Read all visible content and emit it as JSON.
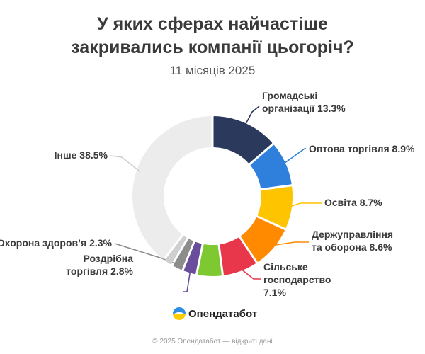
{
  "header": {
    "title_line1": "У яких сферах найчастіше",
    "title_line2": "закривались компанії цьогоріч?",
    "subtitle": "11 місяців 2025"
  },
  "chart_data": {
    "type": "pie",
    "variant": "donut",
    "title": "У яких сферах найчастіше закривались компанії цьогоріч?",
    "subtitle": "11 місяців 2025",
    "unit": "%",
    "slices": [
      {
        "label_lines": [
          "Громадські",
          "організації 13.3%"
        ],
        "name": "Громадські організації",
        "value": 13.3,
        "color": "#2b3a5c"
      },
      {
        "label_lines": [
          "Оптова торгівля 8.9%"
        ],
        "name": "Оптова торгівля",
        "value": 8.9,
        "color": "#2f80dd"
      },
      {
        "label_lines": [
          "Освіта 8.7%"
        ],
        "name": "Освіта",
        "value": 8.7,
        "color": "#ffc400"
      },
      {
        "label_lines": [
          "Держуправління",
          "та оборона 8.6%"
        ],
        "name": "Держуправління та оборона",
        "value": 8.6,
        "color": "#ff8a00"
      },
      {
        "label_lines": [
          "Сільське",
          "господарство",
          "7.1%"
        ],
        "name": "Сільське господарство",
        "value": 7.1,
        "color": "#e8374a"
      },
      {
        "label_lines": [],
        "name": "",
        "value": 5.1,
        "color": "#7ec832"
      },
      {
        "label_lines": [
          "Роздрібна",
          "торгівля 2.8%"
        ],
        "name": "Роздрібна торгівля",
        "value": 2.8,
        "color": "#6a4c9c"
      },
      {
        "label_lines": [
          "Охорона здоров’я 2.3%"
        ],
        "name": "Охорона здоров’я",
        "value": 2.3,
        "color": "#8c8c8c"
      },
      {
        "label_lines": [],
        "name": "",
        "value": 1.9,
        "color": "#cfcfcf"
      },
      {
        "label_lines": [
          "Інше 38.5%"
        ],
        "name": "Інше",
        "value": 38.5,
        "color": "#ececec"
      }
    ]
  },
  "branding": {
    "logo_text": "Опендатабот",
    "logo_colors": [
      "#2f8de4",
      "#ffcc00"
    ]
  },
  "footer": {
    "text": "© 2025 Опендатабот — відкриті дані"
  }
}
